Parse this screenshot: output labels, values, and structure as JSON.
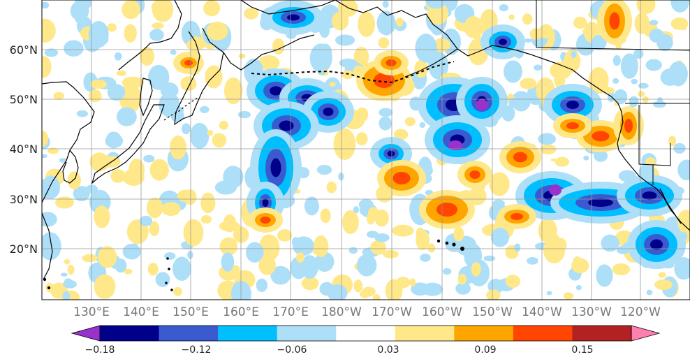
{
  "map": {
    "lat_labels": [
      "60°N",
      "50°N",
      "40°N",
      "30°N",
      "20°N"
    ],
    "lon_labels": [
      "130°E",
      "140°E",
      "150°E",
      "160°E",
      "170°E",
      "180°W",
      "170°W",
      "160°W",
      "150°W",
      "140°W",
      "130°W",
      "120°W"
    ],
    "grid": true,
    "coastline_color": "#000000",
    "grid_color": "#999999"
  },
  "colorbar": {
    "labels": [
      "−0.18",
      "−0.12",
      "−0.06",
      "0.03",
      "0.09",
      "0.15"
    ],
    "colors": [
      "#9932CC",
      "#00008B",
      "#3A5BD0",
      "#00BFFF",
      "#ADDFF8",
      "#FFFFFF",
      "#FFE88A",
      "#FFA500",
      "#FF4500",
      "#B22222",
      "#FF7FAF"
    ],
    "extend": "both"
  },
  "anomaly_palette": {
    "strong_negative": "#9932CC",
    "negative_dark": "#00008B",
    "negative": "#3A5BD0",
    "negative_light": "#00BFFF",
    "negative_faint": "#ADDFF8",
    "positive_faint": "#FFE88A",
    "positive": "#FFA500",
    "positive_strong": "#FF4500",
    "positive_dark": "#B22222"
  }
}
